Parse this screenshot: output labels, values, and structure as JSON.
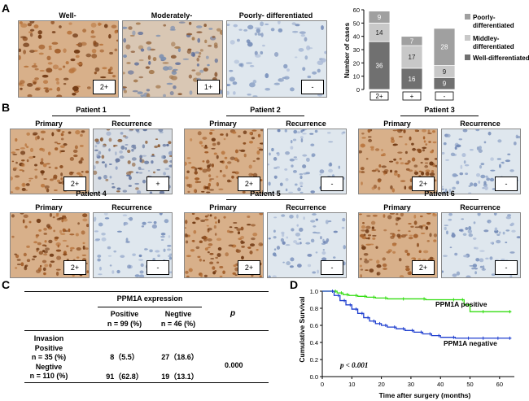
{
  "panels": {
    "a": "A",
    "b": "B",
    "c": "C",
    "d": "D"
  },
  "panel_a": {
    "images": [
      {
        "caption": "Well-",
        "score": "2+",
        "tone": "brown"
      },
      {
        "caption": "Moderately-",
        "score": "1+",
        "tone": "mixed"
      },
      {
        "caption": "Poorly- differentiated",
        "score": "-",
        "tone": "blue"
      }
    ]
  },
  "panel_b": {
    "primary_label": "Primary",
    "recurrence_label": "Recurrence",
    "patients": [
      {
        "name": "Patient 1",
        "primary_score": "2+",
        "recurrence_score": "+",
        "primary_tone": "brown",
        "recurrence_tone": "bluebrown"
      },
      {
        "name": "Patient 2",
        "primary_score": "2+",
        "recurrence_score": "-",
        "primary_tone": "brown",
        "recurrence_tone": "blue"
      },
      {
        "name": "Patient 3",
        "primary_score": "2+",
        "recurrence_score": "-",
        "primary_tone": "brown",
        "recurrence_tone": "blue"
      },
      {
        "name": "Patient 4",
        "primary_score": "2+",
        "recurrence_score": "-",
        "primary_tone": "brown",
        "recurrence_tone": "blue"
      },
      {
        "name": "Patient 5",
        "primary_score": "2+",
        "recurrence_score": "-",
        "primary_tone": "brown",
        "recurrence_tone": "blue"
      },
      {
        "name": "Patient 6",
        "primary_score": "2+",
        "recurrence_score": "-",
        "primary_tone": "brown",
        "recurrence_tone": "blue"
      }
    ]
  },
  "panel_c": {
    "header": "PPM1A  expression",
    "col_pos": "Positive",
    "col_pos_n": "n = 99 (%)",
    "col_neg": "Negtive",
    "col_neg_n": "n = 46 (%)",
    "p_header": "p",
    "invasion_label": "Invasion",
    "row1_label": "Positive",
    "row1_n": "n = 35 (%)",
    "row1_pos": "8（5.5）",
    "row1_neg": "27（18.6）",
    "row2_label": "Negtive",
    "row2_n": "n = 110 (%)",
    "row2_pos": "91（62.8）",
    "row2_neg": "19（13.1）",
    "p_value": "0.000"
  },
  "chart_data": [
    {
      "type": "bar",
      "stacked": true,
      "ylabel": "Number of cases",
      "ylim": [
        0,
        60
      ],
      "yticks": [
        0,
        10,
        20,
        30,
        40,
        50,
        60
      ],
      "categories": [
        "2+",
        "+",
        "-"
      ],
      "series": [
        {
          "name": "Well-differentiated",
          "values": [
            36,
            16,
            9
          ],
          "color": "#707070"
        },
        {
          "name": "Middley-differentiated",
          "values": [
            14,
            17,
            9
          ],
          "color": "#c8c8c8"
        },
        {
          "name": "Poorly-differentiated",
          "values": [
            9,
            7,
            28
          ],
          "color": "#a0a0a0"
        }
      ],
      "legend": [
        "Poorly-differentiated",
        "Middley-differentiated",
        "Well-differentiated"
      ],
      "legend_lines": [
        [
          "Poorly-",
          "differentiated"
        ],
        [
          "Middley-",
          "differentiated"
        ],
        [
          "Well-differentiated"
        ]
      ]
    },
    {
      "type": "line",
      "subtype": "kaplan-meier",
      "xlabel": "Time after surgery (months)",
      "ylabel": "Cumulative Survival",
      "xlim": [
        0,
        65
      ],
      "ylim": [
        0,
        1.0
      ],
      "xticks": [
        0,
        10,
        20,
        30,
        40,
        50,
        60
      ],
      "yticks": [
        0.0,
        0.2,
        0.4,
        0.6,
        0.8,
        1.0
      ],
      "ytick_labels": [
        "0.0",
        "0.2",
        "0.4",
        "0.6",
        "0.8",
        "1.0"
      ],
      "annotation": "p < 0.001",
      "series": [
        {
          "name": "PPM1A positive",
          "color": "#33dd11",
          "x": [
            0,
            5,
            7,
            9,
            12,
            15,
            18,
            22,
            28,
            35,
            45,
            48,
            50,
            55,
            64
          ],
          "y": [
            1.0,
            0.98,
            0.96,
            0.95,
            0.94,
            0.93,
            0.92,
            0.91,
            0.91,
            0.9,
            0.9,
            0.84,
            0.76,
            0.76,
            0.76
          ]
        },
        {
          "name": "PPM1A negative",
          "color": "#1f3fcf",
          "x": [
            0,
            4,
            6,
            8,
            10,
            12,
            14,
            16,
            18,
            20,
            22,
            25,
            28,
            31,
            34,
            37,
            40,
            45,
            50,
            55,
            60,
            64
          ],
          "y": [
            1.0,
            0.95,
            0.89,
            0.84,
            0.79,
            0.74,
            0.69,
            0.65,
            0.62,
            0.6,
            0.58,
            0.56,
            0.54,
            0.52,
            0.5,
            0.48,
            0.46,
            0.45,
            0.45,
            0.45,
            0.45,
            0.45
          ]
        }
      ]
    }
  ]
}
